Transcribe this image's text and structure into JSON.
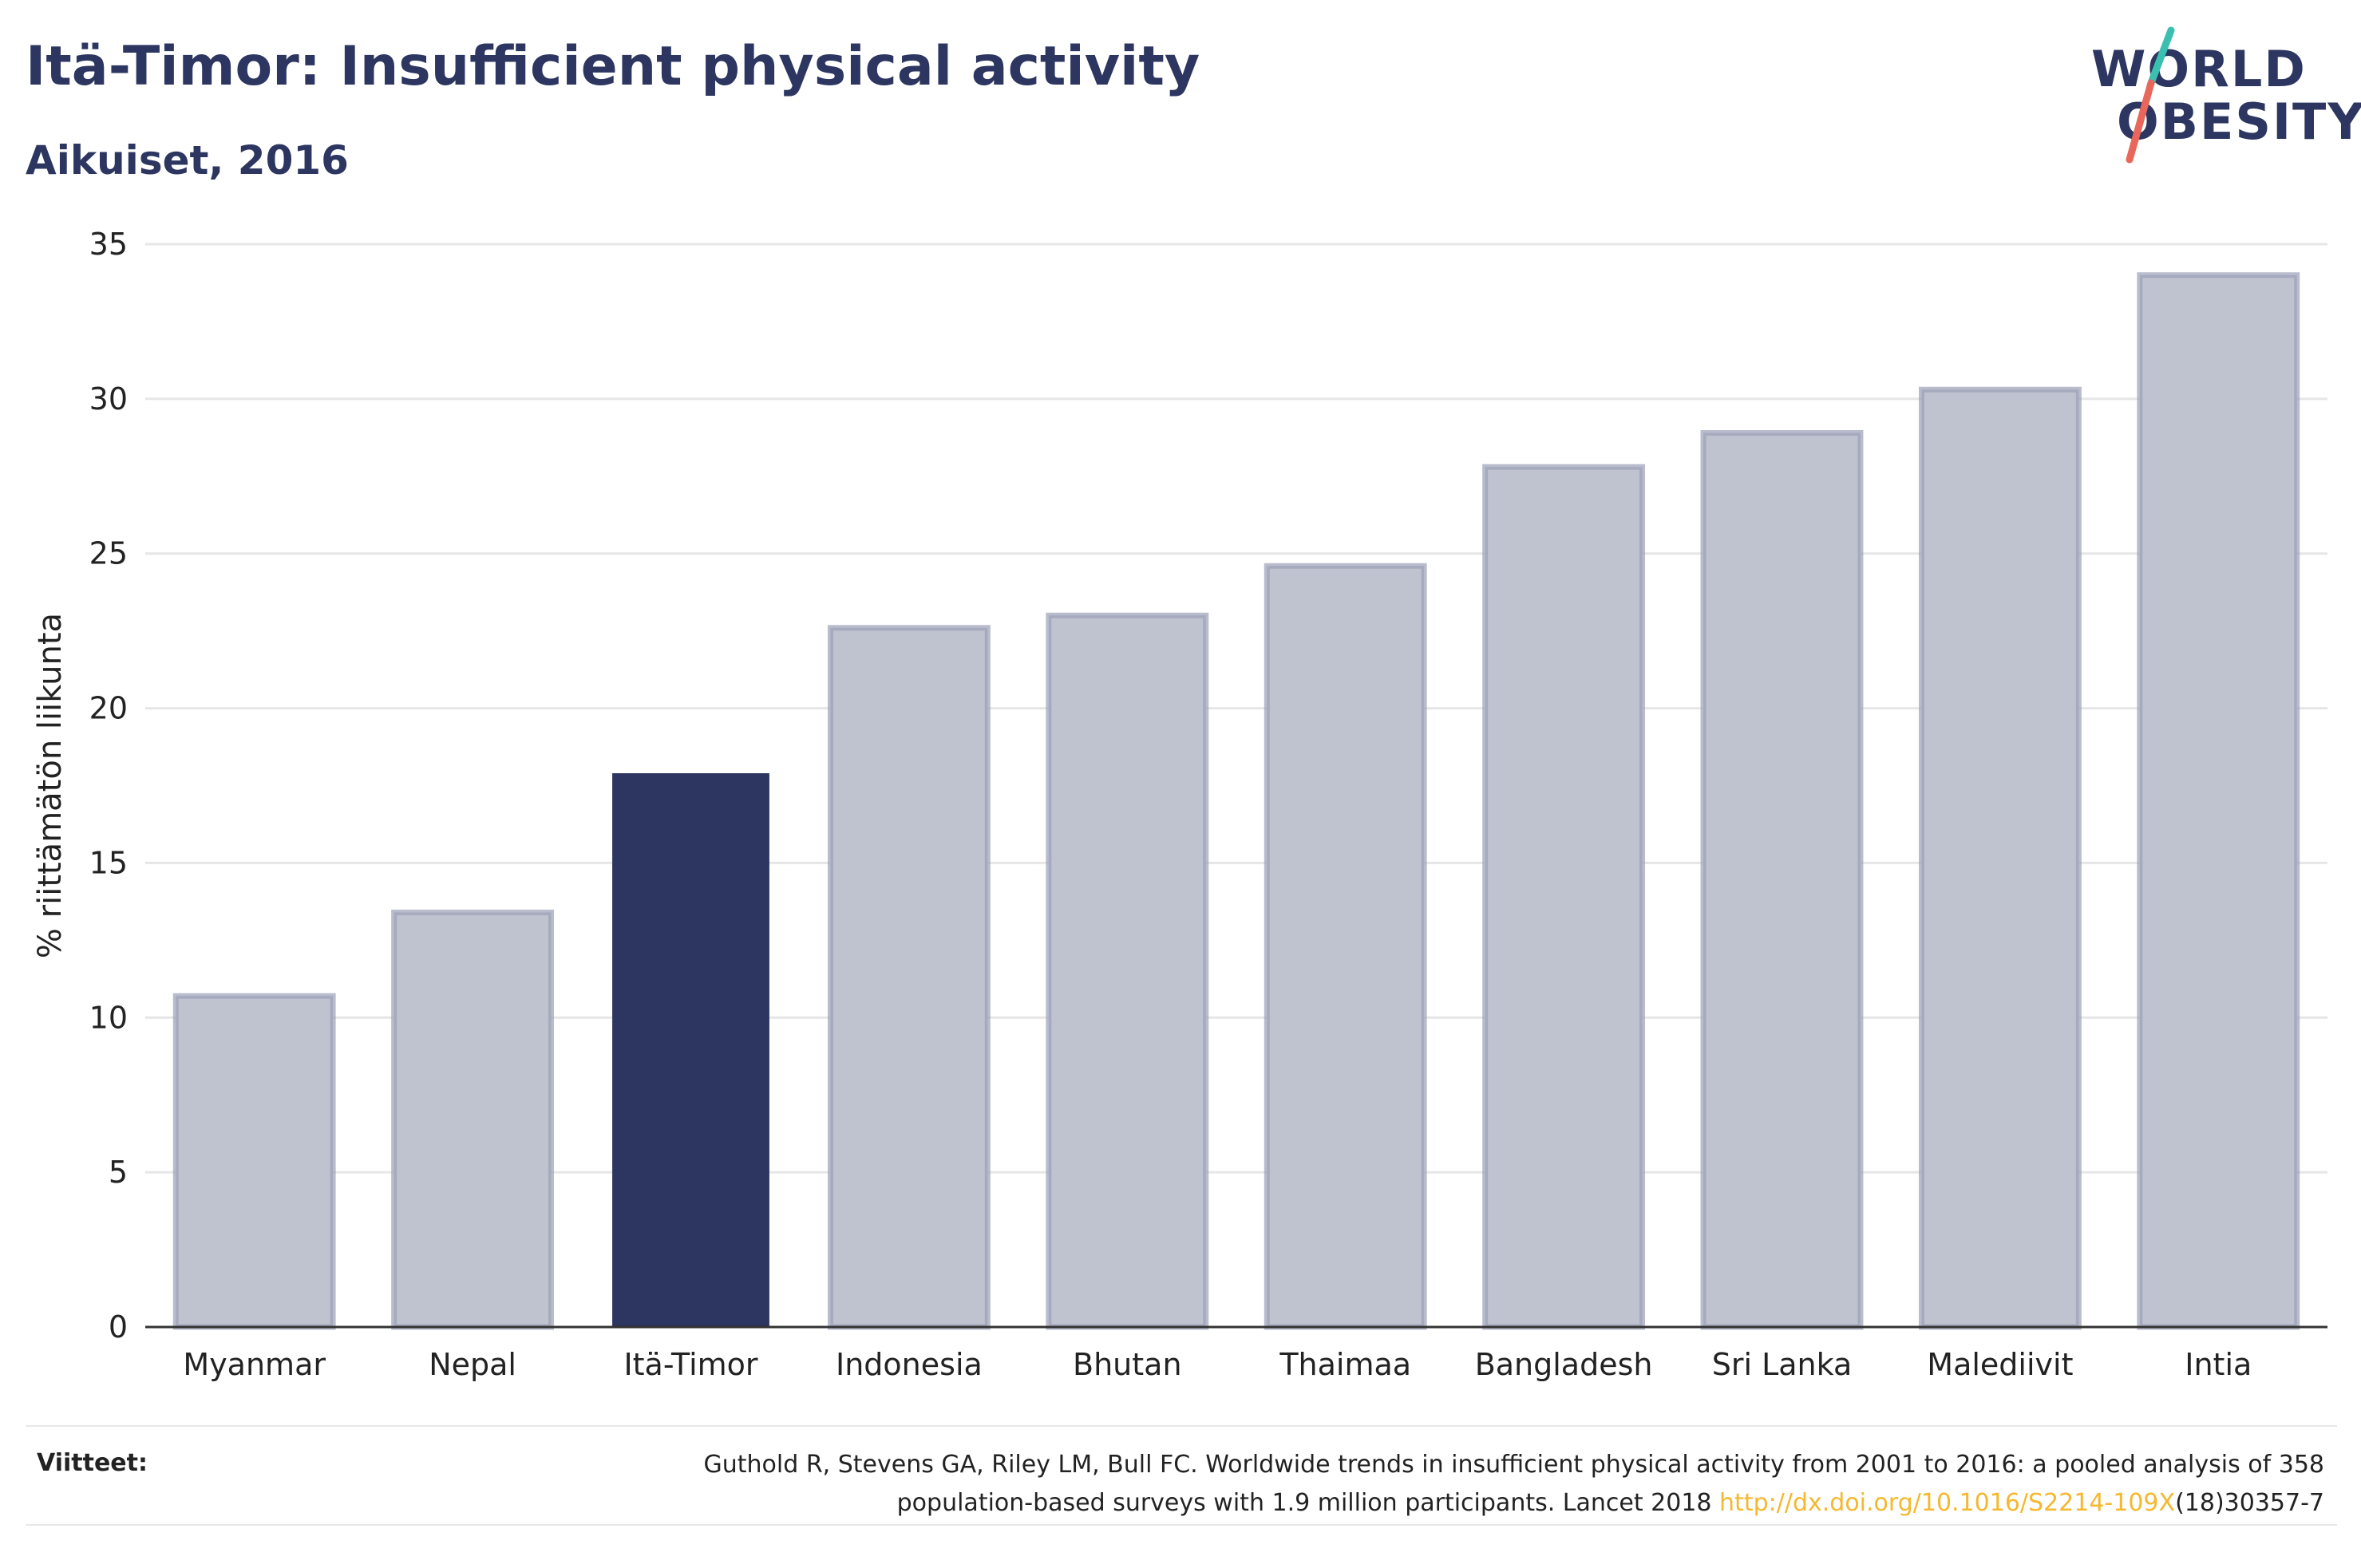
{
  "header": {
    "title": "Itä-Timor: Insufficient physical activity",
    "subtitle": "Aikuiset, 2016"
  },
  "logo": {
    "line1": "WORLD",
    "line2": "OBESITY",
    "accent_colors": [
      "#3bbfb0",
      "#e8675a"
    ]
  },
  "colors": {
    "highlight": "#2c3660",
    "bar_fill": "#bfc3cf",
    "bar_stroke": "#9aa0b6",
    "grid": "#e6e6e6",
    "axis": "#333333",
    "link": "#f5b82e"
  },
  "chart_data": {
    "type": "bar",
    "categories": [
      "Myanmar",
      "Nepal",
      "Itä-Timor",
      "Indonesia",
      "Bhutan",
      "Thaimaa",
      "Bangladesh",
      "Sri Lanka",
      "Malediivit",
      "Intia"
    ],
    "values": [
      10.7,
      13.4,
      17.9,
      22.6,
      23.0,
      24.6,
      27.8,
      28.9,
      30.3,
      34.0
    ],
    "highlight": "Itä-Timor",
    "ylabel": "% riittämätön liikunta",
    "xlabel": "",
    "ylim": [
      0,
      35
    ],
    "yticks": [
      0,
      5,
      10,
      15,
      20,
      25,
      30,
      35
    ],
    "grid": true
  },
  "footer": {
    "label": "Viitteet:",
    "reference_line1": "Guthold R, Stevens GA, Riley LM, Bull FC. Worldwide trends in insufficient physical activity from 2001 to 2016: a pooled analysis of 358",
    "reference_line2_prefix": "population-based surveys with 1.9 million participants. Lancet 2018 ",
    "reference_link": "http://dx.doi.org/10.1016/S2214-109X",
    "reference_line2_suffix": "(18)30357-7"
  }
}
